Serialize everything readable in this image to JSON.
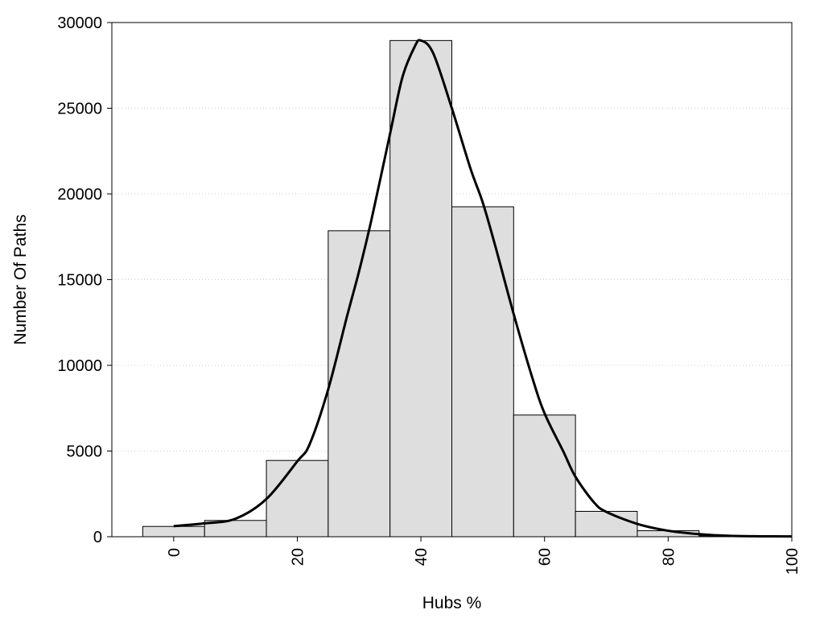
{
  "chart_data": {
    "type": "bar",
    "xlabel": "Hubs %",
    "ylabel": "Number Of Paths",
    "xlim": [
      -10,
      100
    ],
    "ylim": [
      0,
      30000
    ],
    "x_ticks": [
      0,
      20,
      40,
      60,
      80,
      100
    ],
    "y_ticks": [
      0,
      5000,
      10000,
      15000,
      20000,
      25000,
      30000
    ],
    "bin_width": 10,
    "bars": [
      {
        "x": 0,
        "value": 600
      },
      {
        "x": 10,
        "value": 950
      },
      {
        "x": 20,
        "value": 4450
      },
      {
        "x": 30,
        "value": 17850
      },
      {
        "x": 40,
        "value": 28950
      },
      {
        "x": 50,
        "value": 19250
      },
      {
        "x": 60,
        "value": 7100
      },
      {
        "x": 70,
        "value": 1480
      },
      {
        "x": 80,
        "value": 350
      },
      {
        "x": 90,
        "value": 50
      },
      {
        "x": 100,
        "value": 10
      }
    ],
    "curve": [
      {
        "x": 0,
        "y": 620
      },
      {
        "x": 5,
        "y": 780
      },
      {
        "x": 10,
        "y": 1050
      },
      {
        "x": 15,
        "y": 2200
      },
      {
        "x": 20,
        "y": 4400
      },
      {
        "x": 22,
        "y": 5400
      },
      {
        "x": 25,
        "y": 8600
      },
      {
        "x": 28,
        "y": 12800
      },
      {
        "x": 30,
        "y": 15500
      },
      {
        "x": 32,
        "y": 18500
      },
      {
        "x": 35,
        "y": 23500
      },
      {
        "x": 37,
        "y": 26800
      },
      {
        "x": 39,
        "y": 28600
      },
      {
        "x": 40,
        "y": 28950
      },
      {
        "x": 42,
        "y": 28200
      },
      {
        "x": 45,
        "y": 25000
      },
      {
        "x": 48,
        "y": 21500
      },
      {
        "x": 50,
        "y": 19500
      },
      {
        "x": 52,
        "y": 17000
      },
      {
        "x": 55,
        "y": 13000
      },
      {
        "x": 58,
        "y": 9300
      },
      {
        "x": 60,
        "y": 7200
      },
      {
        "x": 63,
        "y": 5000
      },
      {
        "x": 65,
        "y": 3500
      },
      {
        "x": 68,
        "y": 2000
      },
      {
        "x": 70,
        "y": 1450
      },
      {
        "x": 75,
        "y": 750
      },
      {
        "x": 80,
        "y": 350
      },
      {
        "x": 85,
        "y": 150
      },
      {
        "x": 90,
        "y": 50
      },
      {
        "x": 95,
        "y": 25
      },
      {
        "x": 100,
        "y": 20
      }
    ],
    "grid": "horizontal-dotted",
    "colors": {
      "bar_fill": "#dedede",
      "bar_stroke": "#000000",
      "curve": "#000000",
      "grid": "#cccccc"
    }
  }
}
